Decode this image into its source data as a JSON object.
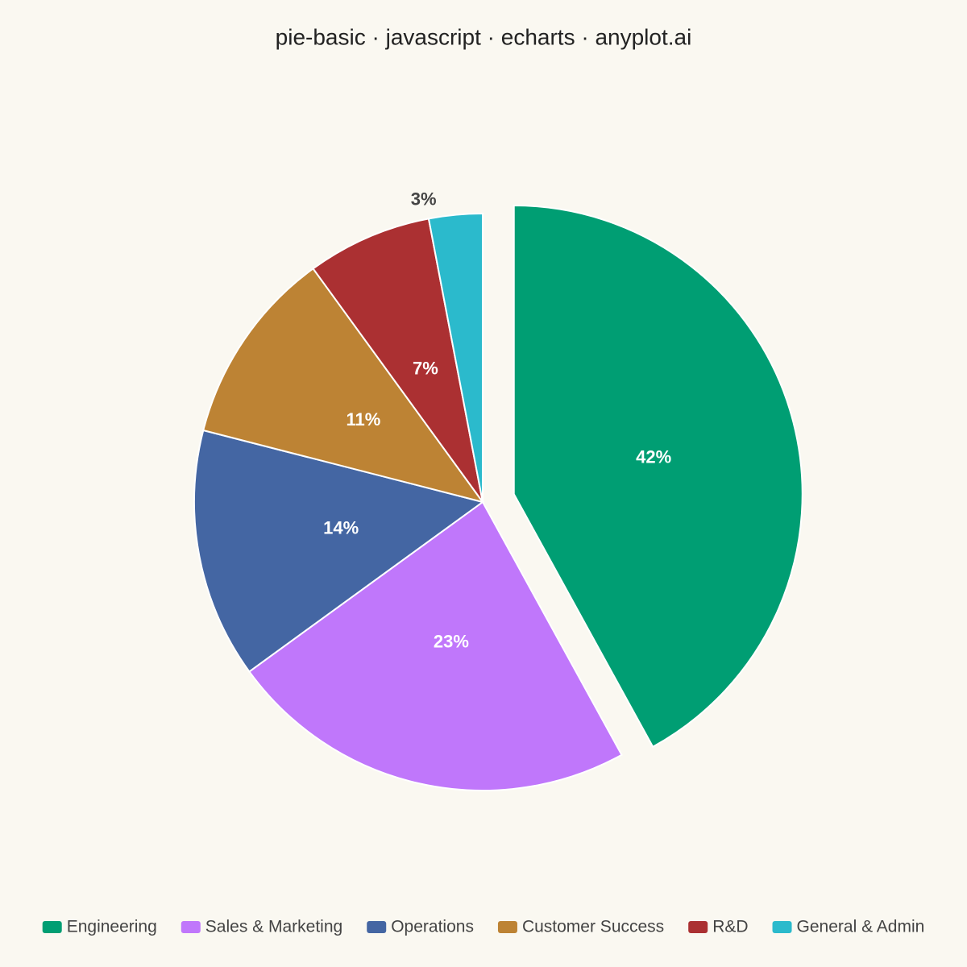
{
  "chart_data": {
    "type": "pie",
    "title": "pie-basic · javascript · echarts · anyplot.ai",
    "categories": [
      "Engineering",
      "Sales & Marketing",
      "Operations",
      "Customer Success",
      "R&D",
      "General & Admin"
    ],
    "values": [
      42,
      23,
      14,
      11,
      7,
      3
    ],
    "value_labels": [
      "42%",
      "23%",
      "14%",
      "11%",
      "7%",
      "3%"
    ],
    "colors": [
      "#009e73",
      "#c077fb",
      "#4466a3",
      "#bd8334",
      "#ab3032",
      "#2bbacc"
    ],
    "exploded": "Engineering",
    "legend": "bottom"
  }
}
